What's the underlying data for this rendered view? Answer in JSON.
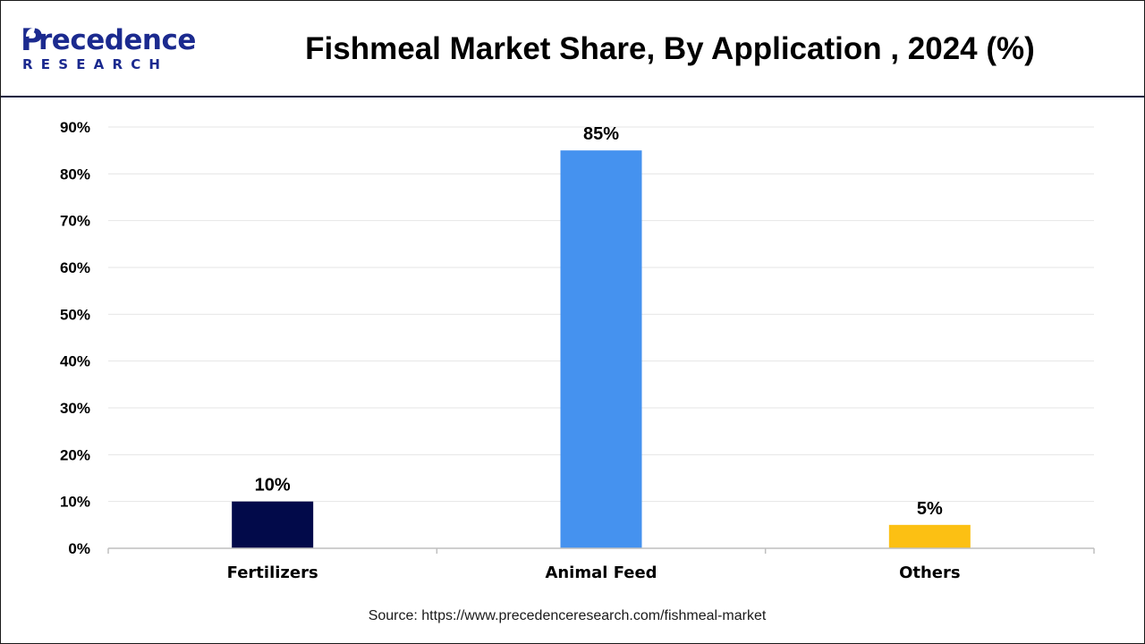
{
  "header": {
    "logo": {
      "text_main": "recedence",
      "text_initial": "P",
      "text_sub": "RESEARCH"
    },
    "title": "Fishmeal Market Share, By Application , 2024 (%)"
  },
  "chart_data": {
    "type": "bar",
    "title": "Fishmeal Market Share, By Application , 2024 (%)",
    "categories": [
      "Fertilizers",
      "Animal Feed",
      "Others"
    ],
    "values": [
      10,
      85,
      5
    ],
    "data_labels": [
      "10%",
      "85%",
      "5%"
    ],
    "colors": [
      "#020a4a",
      "#4592ef",
      "#fcc013"
    ],
    "xlabel": "",
    "ylabel": "",
    "ylim": [
      0,
      90
    ],
    "yticks": [
      0,
      10,
      20,
      30,
      40,
      50,
      60,
      70,
      80,
      90
    ],
    "ytick_labels": [
      "0%",
      "10%",
      "20%",
      "30%",
      "40%",
      "50%",
      "60%",
      "70%",
      "80%",
      "90%"
    ],
    "grid": true,
    "legend": "none"
  },
  "footer": {
    "source": "Source: https://www.precedenceresearch.com/fishmeal-market"
  },
  "colors": {
    "brand": "#1b2a8f",
    "gridline": "#e6e6e6",
    "axis": "#bfbfbf"
  }
}
